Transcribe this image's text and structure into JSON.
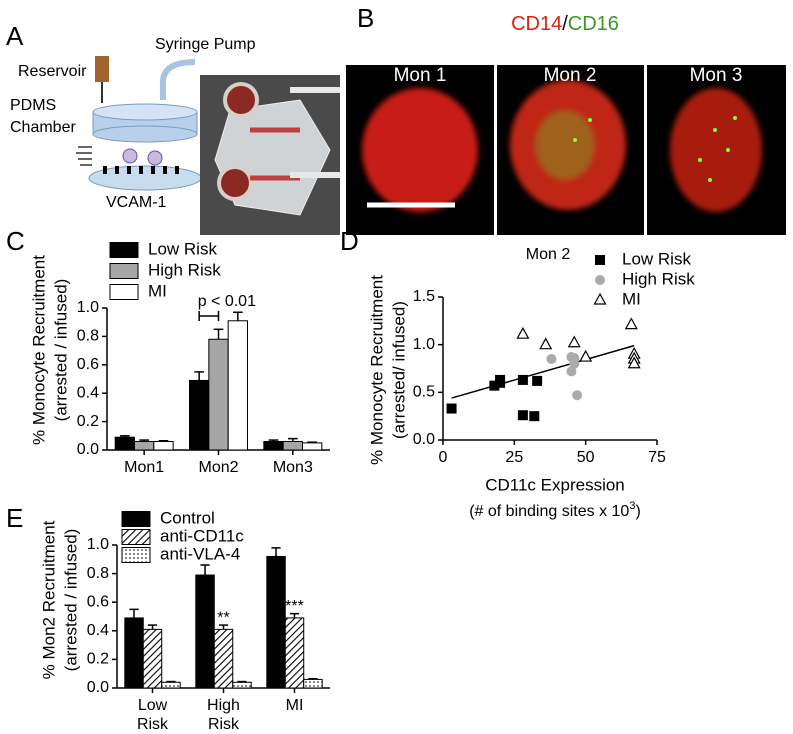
{
  "panel_labels": [
    "A",
    "B",
    "C",
    "D",
    "E"
  ],
  "panel_a": {
    "syringe_pump": "Syringe Pump",
    "reservoir": "Reservoir",
    "chamber": [
      "PDMS",
      "Chamber"
    ],
    "vcam": "VCAM-1"
  },
  "panel_b": {
    "stain": [
      "CD14",
      "/",
      "CD16"
    ],
    "cells": [
      "Mon 1",
      "Mon 2",
      "Mon 3"
    ]
  },
  "chart_data": [
    {
      "type": "bar",
      "ylabel": [
        "% Monocyte Recruitment",
        "(arrested / infused)"
      ],
      "categories": [
        "Mon1",
        "Mon2",
        "Mon3"
      ],
      "series": [
        {
          "name": "Low Risk",
          "color": "#000000",
          "values": [
            0.09,
            0.49,
            0.06
          ],
          "errors": [
            0.01,
            0.06,
            0.01
          ]
        },
        {
          "name": "High Risk",
          "color": "#a6a6a6",
          "values": [
            0.06,
            0.78,
            0.06
          ],
          "errors": [
            0.01,
            0.07,
            0.02
          ]
        },
        {
          "name": "MI",
          "color": "#ffffff",
          "values": [
            0.06,
            0.91,
            0.05
          ],
          "errors": [
            0.005,
            0.06,
            0.005
          ]
        }
      ],
      "ylim": [
        0,
        1.0
      ],
      "yticks": [
        {
          "value": 0,
          "label": "0.0"
        },
        0.2,
        0.4,
        0.6,
        0.8,
        {
          "value": 1.0,
          "label": "1.0"
        }
      ],
      "annotation": "p < 0.01"
    },
    {
      "type": "scatter",
      "title": "Mon 2",
      "xlabel": "CD11c Expression",
      "xlabel_note": [
        "(# of binding sites x 10",
        "3",
        ")"
      ],
      "ylabel": [
        "% Monocyte Recruitment",
        "(arrested/ infused)"
      ],
      "series": [
        {
          "name": "Low Risk",
          "color": "#000000",
          "marker": "square",
          "x": [
            3,
            18,
            20,
            20,
            28,
            28,
            32,
            33
          ],
          "values": [
            0.33,
            0.57,
            0.63,
            0.6,
            0.63,
            0.26,
            0.25,
            0.62
          ]
        },
        {
          "name": "High Risk",
          "color": "#aaaaaa",
          "marker": "circle",
          "x": [
            38,
            45,
            45,
            46,
            47,
            46
          ],
          "values": [
            0.85,
            0.87,
            0.72,
            0.8,
            0.47,
            0.86
          ]
        },
        {
          "name": "MI",
          "color": "#000000",
          "marker": "triangle",
          "x": [
            28,
            36,
            46,
            50,
            66,
            67,
            67,
            67
          ],
          "values": [
            1.11,
            1.0,
            1.02,
            0.87,
            1.21,
            0.9,
            0.85,
            0.8
          ]
        }
      ],
      "trendline": {
        "x": [
          3,
          67
        ],
        "values": [
          0.44,
          0.99
        ]
      },
      "xlim": [
        0,
        75
      ],
      "xticks": [
        0,
        25,
        50,
        75
      ],
      "ylim": [
        0,
        1.5
      ],
      "yticks": [
        {
          "value": 0,
          "label": "0.0"
        },
        0.5,
        {
          "value": 1.0,
          "label": "1.0"
        },
        1.5
      ]
    },
    {
      "type": "bar",
      "ylabel": [
        "% Mon2 Recruitment",
        "(arrested / infused)"
      ],
      "categories": [
        "Low Risk",
        "High Risk",
        "MI"
      ],
      "series": [
        {
          "name": "Control",
          "color": "#000000",
          "values": [
            0.49,
            0.79,
            0.92
          ],
          "errors": [
            0.06,
            0.07,
            0.06
          ]
        },
        {
          "name": "anti-CD11c",
          "color": "#000000",
          "pattern": "hatch",
          "values": [
            0.41,
            0.41,
            0.49
          ],
          "errors": [
            0.03,
            0.03,
            0.03
          ],
          "significance": [
            null,
            "**",
            "***"
          ]
        },
        {
          "name": "anti-VLA-4",
          "color": "#000000",
          "pattern": "dots",
          "values": [
            0.04,
            0.04,
            0.06
          ],
          "errors": [
            0.005,
            0.005,
            0.005
          ]
        }
      ],
      "ylim": [
        0,
        1.0
      ],
      "yticks": [
        {
          "value": 0,
          "label": "0.0"
        },
        0.2,
        0.4,
        0.6,
        0.8,
        {
          "value": 1.0,
          "label": "1.0"
        }
      ]
    }
  ]
}
